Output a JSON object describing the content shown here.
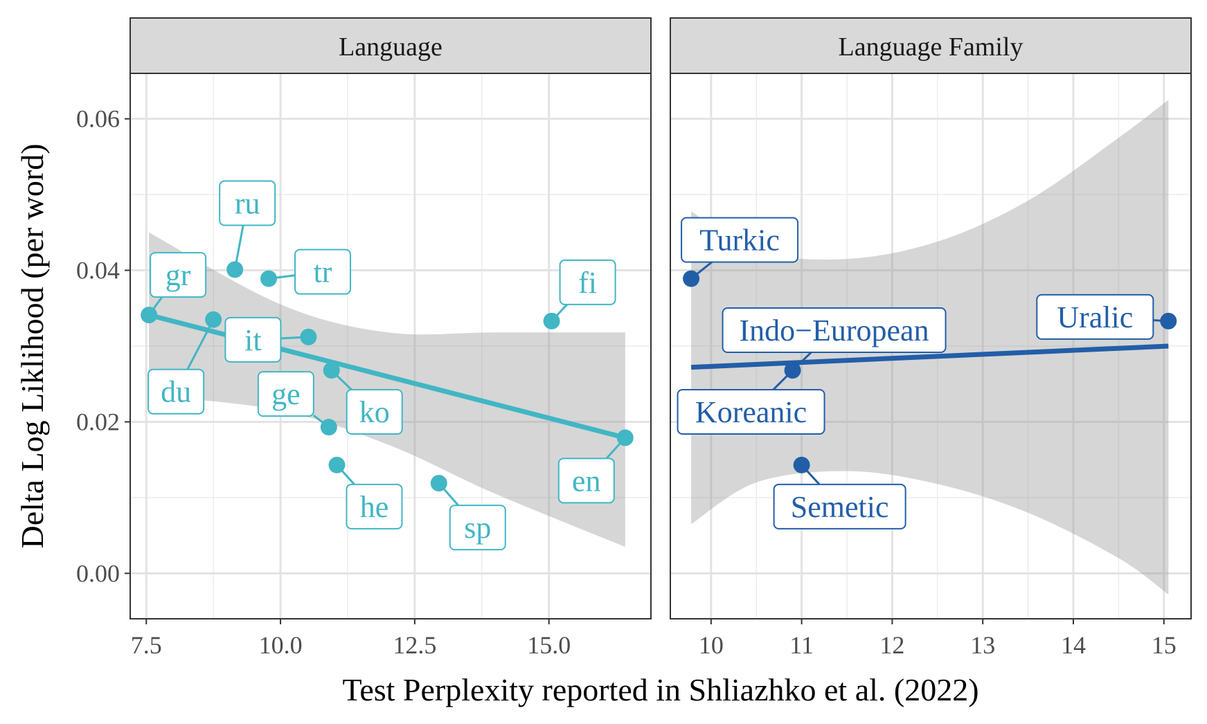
{
  "chart_data": {
    "type": "scatter",
    "xlabel": "Test Perplexity reported in Shliazhko et al. (2022)",
    "ylabel": "Delta Log Liklihood (per word)",
    "ylim": [
      -0.006,
      0.066
    ],
    "y_ticks": [
      0.0,
      0.02,
      0.04,
      0.06
    ],
    "y_tick_labels": [
      "0.00",
      "0.02",
      "0.04",
      "0.06"
    ],
    "grid": true,
    "legend": "none",
    "panels": [
      {
        "strip": "Language",
        "color": "#41b6c4",
        "xlim": [
          7.2,
          16.9
        ],
        "x_ticks": [
          7.5,
          10.0,
          12.5,
          15.0
        ],
        "x_tick_labels": [
          "7.5",
          "10.0",
          "12.5",
          "15.0"
        ],
        "points": [
          {
            "label": "gr",
            "x": 7.55,
            "y": 0.0341
          },
          {
            "label": "du",
            "x": 8.75,
            "y": 0.0335
          },
          {
            "label": "ru",
            "x": 9.15,
            "y": 0.0401
          },
          {
            "label": "tr",
            "x": 9.78,
            "y": 0.0389
          },
          {
            "label": "it",
            "x": 10.52,
            "y": 0.0312
          },
          {
            "label": "ko",
            "x": 10.95,
            "y": 0.0268
          },
          {
            "label": "ge",
            "x": 10.9,
            "y": 0.0193
          },
          {
            "label": "he",
            "x": 11.05,
            "y": 0.0143
          },
          {
            "label": "sp",
            "x": 12.95,
            "y": 0.0119
          },
          {
            "label": "fi",
            "x": 15.05,
            "y": 0.0333
          },
          {
            "label": "en",
            "x": 16.42,
            "y": 0.0179
          }
        ],
        "fit": {
          "x": [
            7.55,
            16.42
          ],
          "y": [
            0.0341,
            0.0179
          ]
        },
        "band": {
          "x": [
            7.55,
            10.0,
            12.0,
            14.0,
            16.42
          ],
          "lower": [
            0.0235,
            0.0215,
            0.017,
            0.0105,
            0.0035
          ],
          "upper": [
            0.045,
            0.0355,
            0.0318,
            0.0318,
            0.0318
          ]
        }
      },
      {
        "strip": "Language Family",
        "color": "#225ea8",
        "xlim": [
          9.55,
          15.3
        ],
        "x_ticks": [
          10,
          11,
          12,
          13,
          14,
          15
        ],
        "x_tick_labels": [
          "10",
          "11",
          "12",
          "13",
          "14",
          "15"
        ],
        "points": [
          {
            "label": "Turkic",
            "x": 9.78,
            "y": 0.0389
          },
          {
            "label": "Indo−European",
            "x": 10.9,
            "y": 0.0268
          },
          {
            "label": "Koreanic",
            "x": 10.9,
            "y": 0.0268
          },
          {
            "label": "Semetic",
            "x": 11.0,
            "y": 0.0143
          },
          {
            "label": "Uralic",
            "x": 15.05,
            "y": 0.0333
          }
        ],
        "fit": {
          "x": [
            9.78,
            15.05
          ],
          "y": [
            0.0272,
            0.03
          ]
        },
        "band": {
          "x": [
            9.78,
            10.5,
            11.5,
            12.5,
            13.5,
            14.5,
            15.05
          ],
          "lower": [
            0.0065,
            0.012,
            0.0135,
            0.0118,
            0.008,
            0.002,
            -0.0028
          ],
          "upper": [
            0.0478,
            0.0425,
            0.0415,
            0.0438,
            0.0492,
            0.0575,
            0.0625
          ]
        }
      }
    ]
  }
}
